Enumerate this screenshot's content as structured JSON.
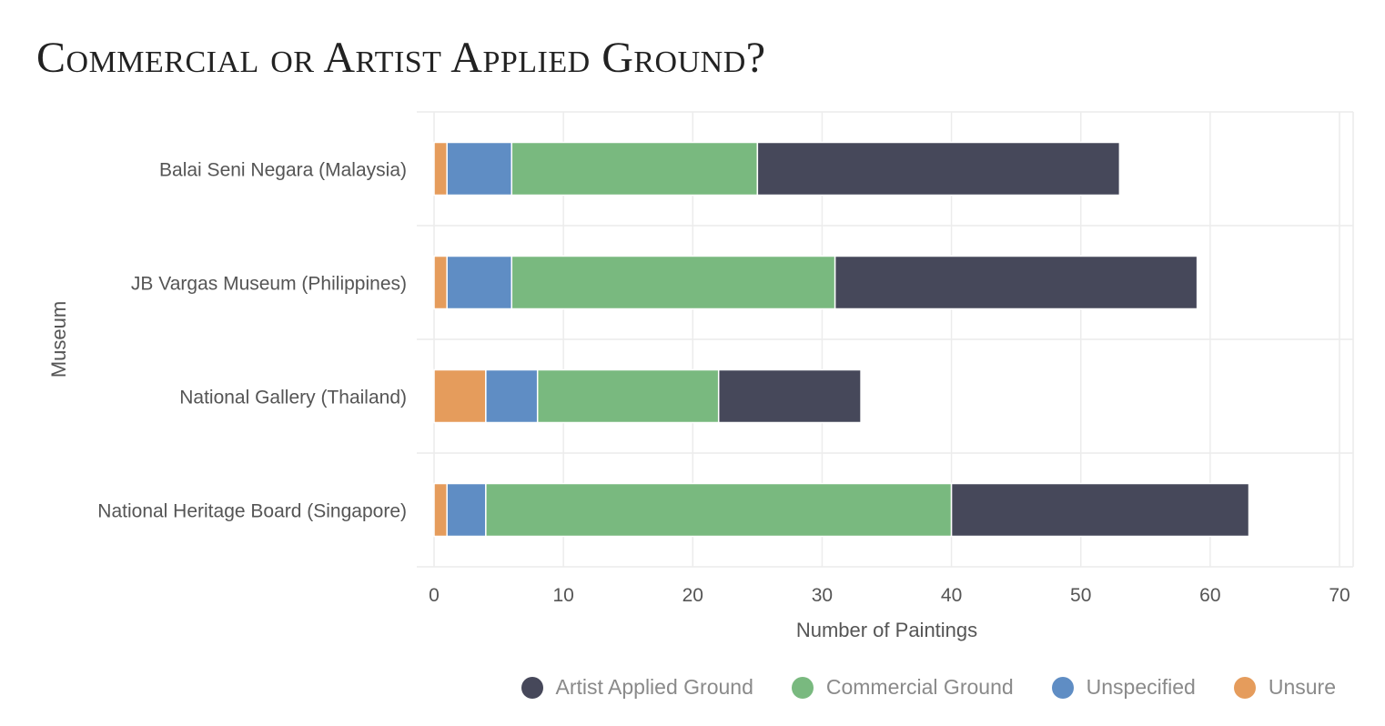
{
  "chart_data": {
    "type": "bar",
    "orientation": "horizontal",
    "stacked": true,
    "title": "Commercial or Artist Applied Ground?",
    "xlabel": "Number of Paintings",
    "ylabel": "Museum",
    "xlim": [
      0,
      70
    ],
    "xticks": [
      0,
      10,
      20,
      30,
      40,
      50,
      60,
      70
    ],
    "grid": true,
    "legend_position": "bottom-right",
    "categories": [
      "Balai Seni Negara (Malaysia)",
      "JB Vargas Museum (Philippines)",
      "National Gallery (Thailand)",
      "National Heritage Board (Singapore)"
    ],
    "series": [
      {
        "name": "Unsure",
        "color": "#e59c5c",
        "values": [
          1,
          1,
          4,
          1
        ]
      },
      {
        "name": "Unspecified",
        "color": "#5f8dc4",
        "values": [
          5,
          5,
          4,
          3
        ]
      },
      {
        "name": "Commercial Ground",
        "color": "#79b97f",
        "values": [
          19,
          25,
          14,
          36
        ]
      },
      {
        "name": "Artist Applied Ground",
        "color": "#46485a",
        "values": [
          28,
          28,
          11,
          23
        ]
      }
    ],
    "legend_order": [
      "Artist Applied Ground",
      "Commercial Ground",
      "Unspecified",
      "Unsure"
    ]
  }
}
